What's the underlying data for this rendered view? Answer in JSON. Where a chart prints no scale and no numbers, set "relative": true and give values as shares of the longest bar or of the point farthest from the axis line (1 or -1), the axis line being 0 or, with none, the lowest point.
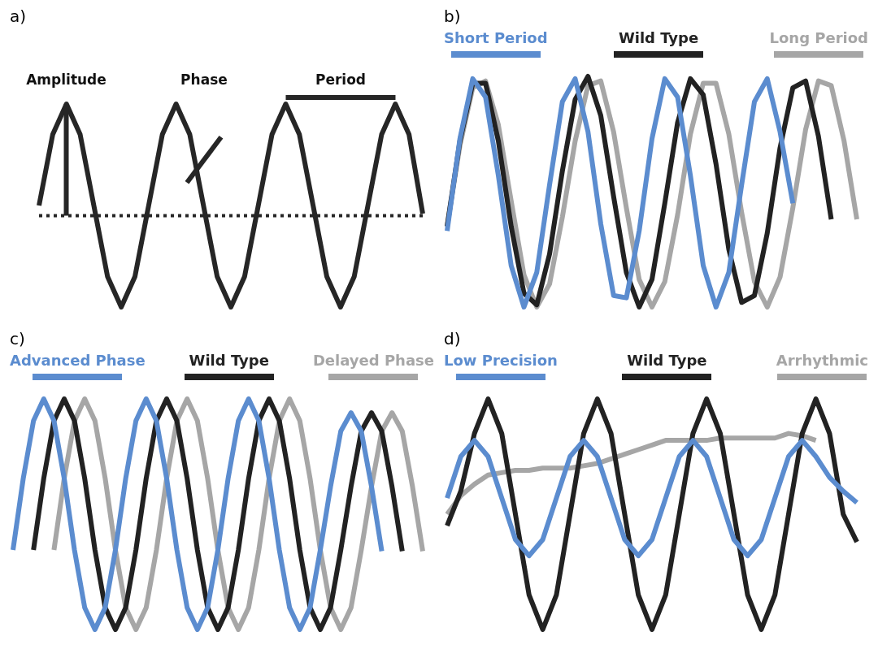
{
  "chart_data": [
    {
      "type": "line",
      "title": "a)",
      "relative": true,
      "marker": "none",
      "line_style": "solid",
      "categories": [
        null,
        null,
        null,
        null,
        null,
        null,
        null,
        null,
        null,
        null,
        null,
        null,
        null,
        null,
        null,
        null,
        null,
        null,
        null,
        null,
        null,
        null,
        null,
        null,
        null,
        null,
        null,
        null,
        null
      ],
      "series": [
        {
          "color": "#262626",
          "values": [
            0.5,
            0.85,
            1,
            0.85,
            0.5,
            0.15,
            0,
            0.15,
            0.5,
            0.85,
            1,
            0.85,
            0.5,
            0.15,
            0,
            0.15,
            0.5,
            0.85,
            1,
            0.85,
            0.5,
            0.15,
            0,
            0.15,
            0.5,
            0.85,
            1,
            0.85,
            0.46
          ]
        }
      ],
      "ref_lines": [
        {
          "axis": "y",
          "value": 0.45,
          "color": "#262626",
          "line_style": "dotted"
        }
      ],
      "annotations": [
        "Amplitude",
        "Phase",
        "Period"
      ]
    },
    {
      "type": "line",
      "title": "b)",
      "relative": true,
      "marker": "none",
      "line_style": "solid",
      "legend": "top",
      "categories": [
        null,
        null,
        null,
        null,
        null,
        null,
        null,
        null,
        null,
        null,
        null,
        null,
        null,
        null,
        null,
        null,
        null,
        null,
        null,
        null,
        null,
        null,
        null,
        null,
        null,
        null,
        null,
        null,
        null,
        null,
        null,
        null,
        null
      ],
      "series": [
        {
          "name": "Short Period",
          "color": "#5b8ccf",
          "values": [
            0.33,
            0.73,
            0.99,
            0.91,
            0.57,
            0.18,
            0,
            0.15,
            0.53,
            0.89,
            0.99,
            0.76,
            0.36,
            0.05,
            0.04,
            0.33,
            0.73,
            0.99,
            0.91,
            0.57,
            0.18,
            0,
            0.15,
            0.53,
            0.89,
            0.99,
            0.76,
            0.45,
            null,
            null,
            null,
            null,
            null
          ]
        },
        {
          "name": "Wild Type",
          "color": "#222222",
          "values": [
            0.35,
            0.72,
            0.97,
            0.97,
            0.72,
            0.35,
            0.06,
            0.01,
            0.23,
            0.59,
            0.9,
            1,
            0.83,
            0.48,
            0.15,
            0,
            0.12,
            0.45,
            0.8,
            0.99,
            0.92,
            0.62,
            0.25,
            0.02,
            0.05,
            0.32,
            0.69,
            0.95,
            0.98,
            0.74,
            0.38,
            null,
            null
          ]
        },
        {
          "name": "Long Period",
          "color": "#a6a6a6",
          "values": [
            0.35,
            0.7,
            0.95,
            0.98,
            0.79,
            0.46,
            0.14,
            0,
            0.1,
            0.39,
            0.72,
            0.96,
            0.98,
            0.76,
            0.43,
            0.12,
            0,
            0.11,
            0.4,
            0.75,
            0.97,
            0.97,
            0.75,
            0.41,
            0.11,
            0,
            0.13,
            0.43,
            0.77,
            0.98,
            0.96,
            0.72,
            0.38
          ]
        }
      ]
    },
    {
      "type": "line",
      "title": "c)",
      "relative": true,
      "marker": "none",
      "line_style": "solid",
      "legend": "top",
      "categories": [
        null,
        null,
        null,
        null,
        null,
        null,
        null,
        null,
        null,
        null,
        null,
        null,
        null,
        null,
        null,
        null,
        null,
        null,
        null,
        null,
        null,
        null,
        null,
        null,
        null,
        null,
        null,
        null,
        null,
        null,
        null,
        null,
        null,
        null,
        null,
        null,
        null,
        null,
        null,
        null,
        null
      ],
      "series": [
        {
          "name": "Advanced Phase",
          "color": "#5b8ccf",
          "values": [
            0.345,
            0.655,
            0.905,
            1,
            0.905,
            0.655,
            0.345,
            0.095,
            0,
            0.095,
            0.345,
            0.655,
            0.905,
            1,
            0.905,
            0.655,
            0.345,
            0.095,
            0,
            0.095,
            0.345,
            0.655,
            0.905,
            1,
            0.905,
            0.655,
            0.345,
            0.095,
            0,
            0.095,
            0.345,
            0.62,
            0.86,
            0.94,
            0.86,
            0.62,
            0.34,
            null,
            null,
            null,
            null
          ]
        },
        {
          "name": "Wild Type",
          "color": "#222222",
          "values": [
            null,
            null,
            0.345,
            0.655,
            0.905,
            1,
            0.905,
            0.655,
            0.345,
            0.095,
            0,
            0.095,
            0.345,
            0.655,
            0.905,
            1,
            0.905,
            0.655,
            0.345,
            0.095,
            0,
            0.095,
            0.345,
            0.655,
            0.905,
            1,
            0.905,
            0.655,
            0.345,
            0.095,
            0,
            0.095,
            0.345,
            0.62,
            0.86,
            0.94,
            0.86,
            0.62,
            0.34,
            null,
            null
          ]
        },
        {
          "name": "Delayed Phase",
          "color": "#a6a6a6",
          "values": [
            null,
            null,
            null,
            null,
            0.345,
            0.655,
            0.905,
            1,
            0.905,
            0.655,
            0.345,
            0.095,
            0,
            0.095,
            0.345,
            0.655,
            0.905,
            1,
            0.905,
            0.655,
            0.345,
            0.095,
            0,
            0.095,
            0.345,
            0.655,
            0.905,
            1,
            0.905,
            0.655,
            0.345,
            0.095,
            0,
            0.095,
            0.345,
            0.62,
            0.86,
            0.94,
            0.86,
            0.62,
            0.34
          ]
        }
      ]
    },
    {
      "type": "line",
      "title": "d)",
      "relative": true,
      "marker": "none",
      "line_style": "solid",
      "legend": "top",
      "categories": [
        null,
        null,
        null,
        null,
        null,
        null,
        null,
        null,
        null,
        null,
        null,
        null,
        null,
        null,
        null,
        null,
        null,
        null,
        null,
        null,
        null,
        null,
        null,
        null,
        null,
        null,
        null,
        null,
        null,
        null,
        null
      ],
      "series": [
        {
          "name": "Low Precision",
          "color": "#5b8ccf",
          "values": [
            0.57,
            0.75,
            0.82,
            0.75,
            0.57,
            0.39,
            0.32,
            0.39,
            0.57,
            0.75,
            0.82,
            0.75,
            0.57,
            0.39,
            0.32,
            0.39,
            0.57,
            0.75,
            0.82,
            0.75,
            0.57,
            0.39,
            0.32,
            0.39,
            0.57,
            0.75,
            0.82,
            0.75,
            0.66,
            0.6,
            0.55
          ]
        },
        {
          "name": "Wild Type",
          "color": "#222222",
          "values": [
            0.45,
            0.6,
            0.85,
            1,
            0.85,
            0.5,
            0.15,
            0,
            0.15,
            0.5,
            0.85,
            1,
            0.85,
            0.5,
            0.15,
            0,
            0.15,
            0.5,
            0.85,
            1,
            0.85,
            0.5,
            0.15,
            0,
            0.15,
            0.5,
            0.85,
            1,
            0.85,
            0.5,
            0.38
          ]
        },
        {
          "name": "Arrhythmic",
          "color": "#a6a6a6",
          "values": [
            0.5,
            0.58,
            0.63,
            0.67,
            0.68,
            0.69,
            0.69,
            0.7,
            0.7,
            0.7,
            0.71,
            0.72,
            0.74,
            0.76,
            0.78,
            0.8,
            0.82,
            0.82,
            0.82,
            0.82,
            0.83,
            0.83,
            0.83,
            0.83,
            0.83,
            0.85,
            0.84,
            0.82,
            null,
            null,
            null
          ]
        }
      ]
    }
  ]
}
